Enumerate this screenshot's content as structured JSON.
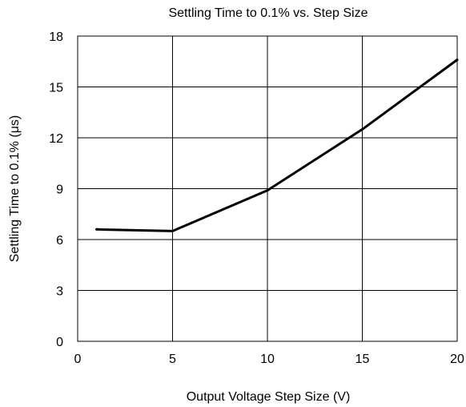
{
  "chart_data": {
    "type": "line",
    "title": "Settling Time to 0.1% vs. Step Size",
    "xlabel": "Output Voltage Step Size (V)",
    "ylabel": "Settling Time to 0.1% (μs)",
    "xlim": [
      0,
      20
    ],
    "ylim": [
      0,
      18
    ],
    "x_ticks": [
      0,
      5,
      10,
      15,
      20
    ],
    "y_ticks": [
      0,
      3,
      6,
      9,
      12,
      15,
      18
    ],
    "grid": true,
    "line_color": "#000000",
    "series": [
      {
        "x": [
          1,
          5,
          10,
          15,
          20
        ],
        "y": [
          6.6,
          6.5,
          8.9,
          12.5,
          16.6
        ]
      }
    ]
  }
}
